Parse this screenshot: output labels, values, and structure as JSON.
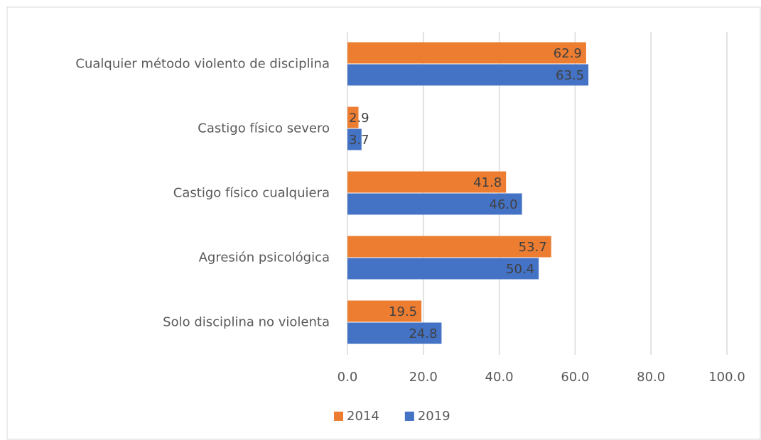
{
  "chart_data": {
    "type": "hbar",
    "categories": [
      "Cualquier método violento de disciplina",
      "Castigo físico severo",
      "Castigo físico cualquiera",
      "Agresión psicológica",
      "Solo disciplina no violenta"
    ],
    "series": [
      {
        "name": "2014",
        "color": "#ed7d31",
        "values": [
          62.9,
          2.9,
          41.8,
          53.7,
          19.5
        ],
        "value_labels": [
          "62.9",
          "2.9",
          "41.8",
          "53.7",
          "19.5"
        ]
      },
      {
        "name": "2019",
        "color": "#4472c4",
        "values": [
          63.5,
          3.7,
          46.0,
          50.4,
          24.8
        ],
        "value_labels": [
          "63.5",
          "3.7",
          "46.0",
          "50.4",
          "24.8"
        ]
      }
    ],
    "xlim": [
      0,
      100
    ],
    "xticks": [
      {
        "value": 0,
        "label": "0.0"
      },
      {
        "value": 20,
        "label": "20.0"
      },
      {
        "value": 40,
        "label": "40.0"
      },
      {
        "value": 60,
        "label": "60.0"
      },
      {
        "value": 80,
        "label": "80.0"
      },
      {
        "value": 100,
        "label": "100.0"
      }
    ],
    "grid": true,
    "legend": "bottom"
  }
}
